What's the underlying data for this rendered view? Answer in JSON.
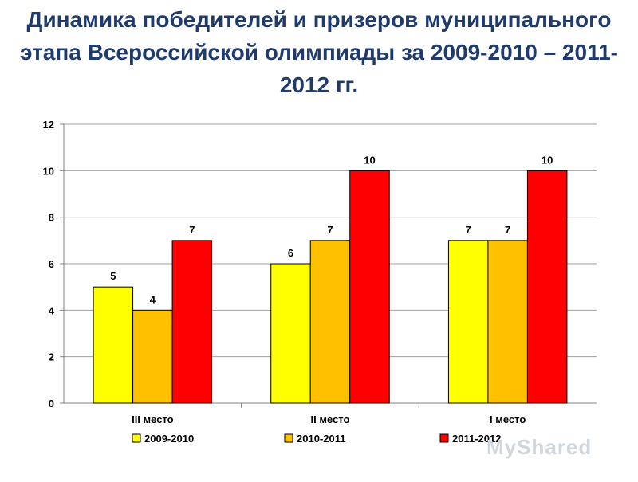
{
  "title": "Динамика победителей и призеров муниципального этапа Всероссийской олимпиады  за 2009-2010 – 2011-2012 гг.",
  "watermark_text": "MyShared",
  "chart_data": {
    "type": "bar",
    "title": "Динамика победителей и призеров муниципального этапа Всероссийской олимпиады  за 2009-2010 – 2011-2012 гг.",
    "categories": [
      "III место",
      "II место",
      "I место"
    ],
    "series": [
      {
        "name": "2009-2010",
        "values": [
          5,
          6,
          7
        ],
        "color": "#ffff00"
      },
      {
        "name": "2010-2011",
        "values": [
          4,
          7,
          7
        ],
        "color": "#ffc000"
      },
      {
        "name": "2011-2012",
        "values": [
          7,
          10,
          10
        ],
        "color": "#ff0000"
      }
    ],
    "ylim": [
      0,
      12
    ],
    "yticks": [
      "0",
      "2",
      "4",
      "6",
      "8",
      "10",
      "12"
    ],
    "ytick_values": [
      0,
      2,
      4,
      6,
      8,
      10,
      12
    ],
    "grid": true,
    "legend_position": "bottom",
    "data_labels": true
  }
}
